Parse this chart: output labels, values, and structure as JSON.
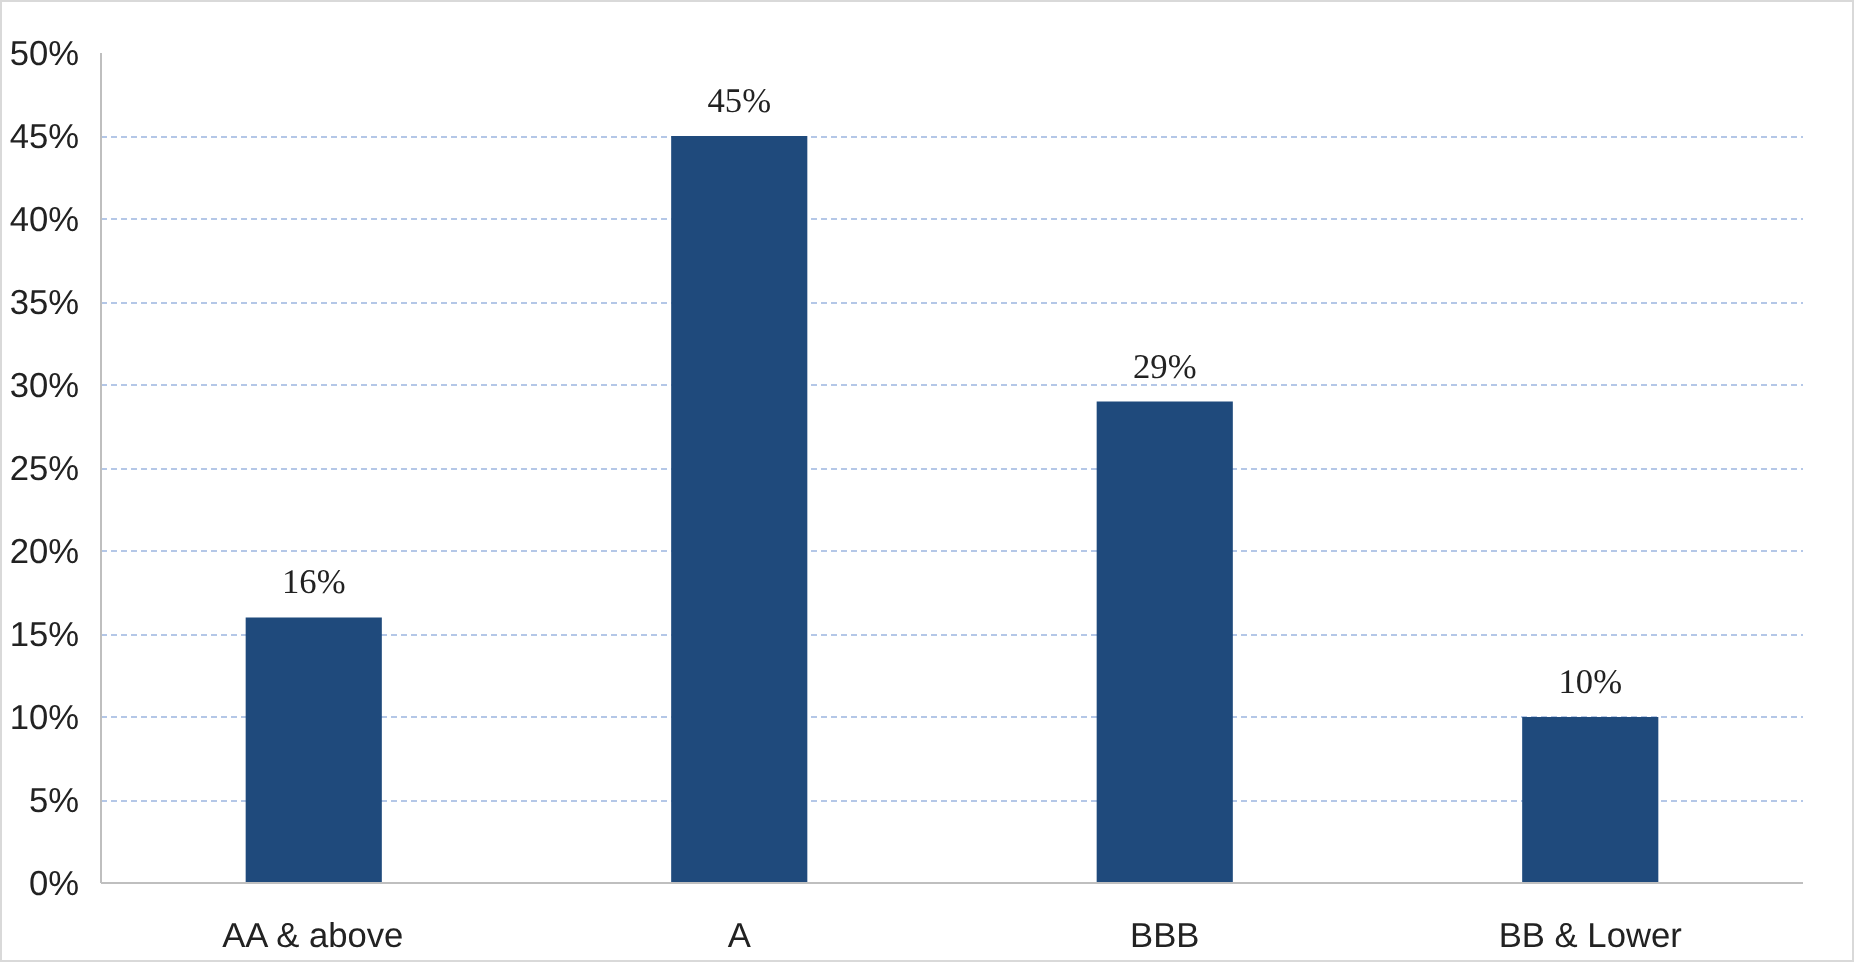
{
  "chart_data": {
    "type": "bar",
    "categories": [
      "AA & above",
      "A",
      "BBB",
      "BB & Lower"
    ],
    "values": [
      16,
      45,
      29,
      10
    ],
    "value_labels": [
      "16%",
      "45%",
      "29%",
      "10%"
    ],
    "color": "#1f4a7c",
    "ylim": [
      0,
      50
    ],
    "yticks": [
      {
        "value": 0,
        "label": "0%"
      },
      {
        "value": 5,
        "label": "5%"
      },
      {
        "value": 10,
        "label": "10%"
      },
      {
        "value": 15,
        "label": "15%"
      },
      {
        "value": 20,
        "label": "20%"
      },
      {
        "value": 25,
        "label": "25%"
      },
      {
        "value": 30,
        "label": "30%"
      },
      {
        "value": 35,
        "label": "35%"
      },
      {
        "value": 40,
        "label": "40%"
      },
      {
        "value": 45,
        "label": "45%"
      },
      {
        "value": 50,
        "label": "50%"
      }
    ],
    "grid": "y"
  }
}
